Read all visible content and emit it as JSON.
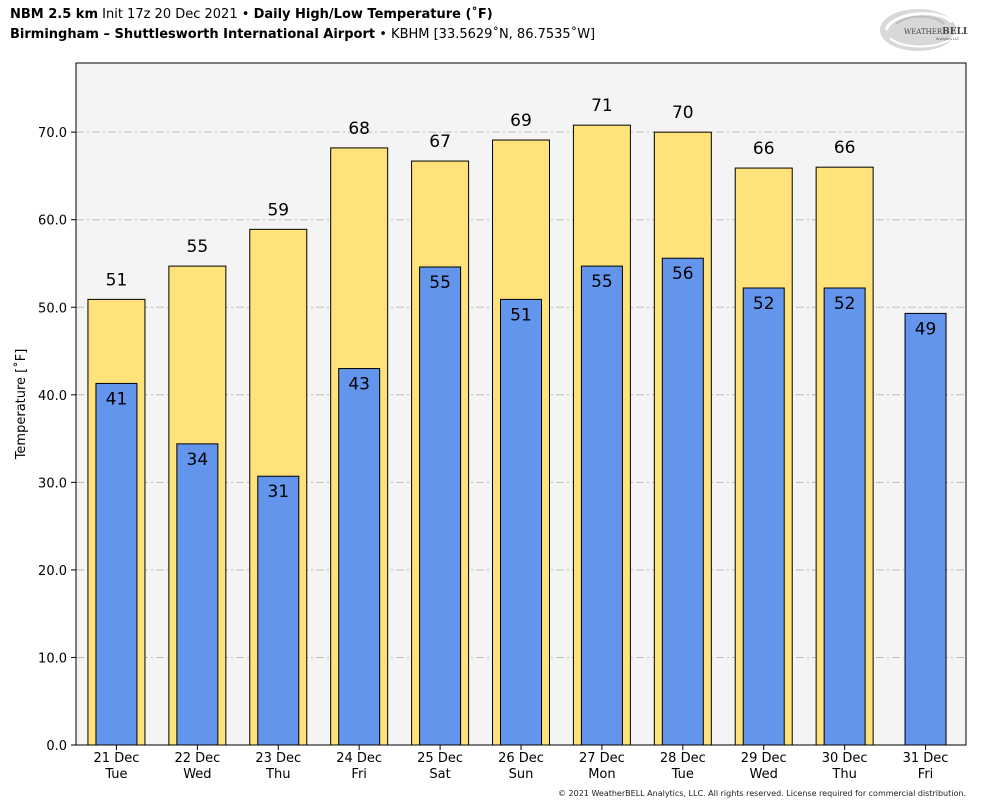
{
  "header": {
    "model": "NBM 2.5 km",
    "init": "Init 17z 20 Dec 2021",
    "separator": "•",
    "product": "Daily High/Low Temperature (˚F)",
    "station_name": "Birmingham – Shuttlesworth International Airport",
    "station_info": "KBHM [33.5629˚N, 86.7535˚W]"
  },
  "logo": {
    "text_main": "WEATHER",
    "text_bold": "BELL",
    "text_sub": "Analytics LLC"
  },
  "footer": {
    "copyright": "© 2021 WeatherBELL Analytics, LLC. All rights reserved. License required for commercial distribution."
  },
  "colors": {
    "high": "#FFE27A",
    "low": "#6495ED",
    "plot_bg": "#F4F4F4",
    "grid": "#BBBBBB"
  },
  "chart_data": {
    "type": "bar",
    "title": "Daily High/Low Temperature (˚F)",
    "xlabel": "",
    "ylabel": "Temperature [˚F]",
    "ylim": [
      0,
      77.9
    ],
    "yticks": [
      0,
      10,
      20,
      30,
      40,
      50,
      60,
      70
    ],
    "ytick_labels": [
      "0.0",
      "10.0",
      "20.0",
      "30.0",
      "40.0",
      "50.0",
      "60.0",
      "70.0"
    ],
    "grid": true,
    "categories": [
      {
        "date": "21 Dec",
        "day": "Tue"
      },
      {
        "date": "22 Dec",
        "day": "Wed"
      },
      {
        "date": "23 Dec",
        "day": "Thu"
      },
      {
        "date": "24 Dec",
        "day": "Fri"
      },
      {
        "date": "25 Dec",
        "day": "Sat"
      },
      {
        "date": "26 Dec",
        "day": "Sun"
      },
      {
        "date": "27 Dec",
        "day": "Mon"
      },
      {
        "date": "28 Dec",
        "day": "Tue"
      },
      {
        "date": "29 Dec",
        "day": "Wed"
      },
      {
        "date": "30 Dec",
        "day": "Thu"
      },
      {
        "date": "31 Dec",
        "day": "Fri"
      }
    ],
    "series": [
      {
        "name": "High",
        "values": [
          51,
          55,
          59,
          68,
          67,
          69,
          71,
          70,
          66,
          66,
          null
        ],
        "bar_values": [
          50.9,
          54.7,
          58.9,
          68.2,
          66.7,
          69.1,
          70.8,
          70.0,
          65.9,
          66.0,
          null
        ]
      },
      {
        "name": "Low",
        "values": [
          41,
          34,
          31,
          43,
          55,
          51,
          55,
          56,
          52,
          52,
          49
        ],
        "bar_values": [
          41.3,
          34.4,
          30.7,
          43.0,
          54.6,
          50.9,
          54.7,
          55.6,
          52.2,
          52.2,
          49.3
        ]
      }
    ]
  }
}
